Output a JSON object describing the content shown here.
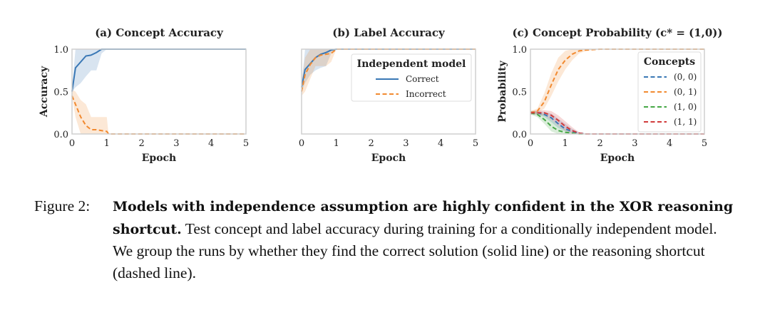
{
  "colors": {
    "blue": "#3a78b5",
    "orange": "#f28a30",
    "green": "#45a745",
    "red": "#d13c3c",
    "frame": "#cfcfcf"
  },
  "chart_data": [
    {
      "type": "line",
      "title": "(a) Concept Accuracy",
      "xlabel": "Epoch",
      "ylabel": "Accuracy",
      "xlim": [
        0,
        5
      ],
      "ylim": [
        0,
        1
      ],
      "xticks": [
        "0",
        "1",
        "2",
        "3",
        "4",
        "5"
      ],
      "yticks": [
        "0.0",
        "0.5",
        "1.0"
      ],
      "series": [
        {
          "name": "Correct",
          "color": "blue",
          "dash": false,
          "x": [
            0,
            0.1,
            0.25,
            0.4,
            0.55,
            0.7,
            0.85,
            1,
            2,
            5
          ],
          "y": [
            0.5,
            0.78,
            0.85,
            0.92,
            0.93,
            0.96,
            1,
            1,
            1,
            1
          ],
          "lower": [
            0.5,
            0.55,
            0.6,
            0.68,
            0.75,
            0.75,
            0.95,
            1,
            1,
            1
          ],
          "upper": [
            0.55,
            1,
            1,
            1,
            1,
            1,
            1,
            1,
            1,
            1
          ]
        },
        {
          "name": "Incorrect",
          "color": "orange",
          "dash": true,
          "x": [
            0,
            0.1,
            0.25,
            0.4,
            0.55,
            0.7,
            0.85,
            1,
            1.05,
            2,
            5
          ],
          "y": [
            0.45,
            0.35,
            0.2,
            0.1,
            0.05,
            0.05,
            0.04,
            0.03,
            0,
            0,
            0
          ],
          "lower": [
            0.45,
            0.2,
            0,
            0,
            0,
            0,
            0,
            0,
            0,
            0,
            0
          ],
          "upper": [
            0.52,
            0.5,
            0.4,
            0.35,
            0.2,
            0.2,
            0.2,
            0.2,
            0,
            0,
            0
          ]
        }
      ]
    },
    {
      "type": "line",
      "title": "(b) Label Accuracy",
      "xlabel": "Epoch",
      "ylabel": "",
      "xlim": [
        0,
        5
      ],
      "ylim": [
        0,
        1
      ],
      "xticks": [
        "0",
        "1",
        "2",
        "3",
        "4",
        "5"
      ],
      "yticks": [],
      "legend": {
        "title": "Independent model",
        "position": "upper-right",
        "entries": [
          "Correct",
          "Incorrect"
        ]
      },
      "series": [
        {
          "name": "Correct",
          "color": "blue",
          "dash": false,
          "x": [
            0,
            0.1,
            0.25,
            0.4,
            0.55,
            0.7,
            0.85,
            1,
            2,
            5
          ],
          "y": [
            0.55,
            0.76,
            0.83,
            0.9,
            0.94,
            0.96,
            0.99,
            1,
            1,
            1
          ],
          "lower": [
            0.5,
            0.6,
            0.7,
            0.75,
            0.78,
            0.8,
            0.95,
            1,
            1,
            1
          ],
          "upper": [
            0.6,
            1,
            1,
            1,
            1,
            1,
            1,
            1,
            1,
            1
          ]
        },
        {
          "name": "Incorrect",
          "color": "orange",
          "dash": true,
          "x": [
            0,
            0.1,
            0.25,
            0.4,
            0.55,
            0.7,
            0.85,
            1,
            2,
            5
          ],
          "y": [
            0.5,
            0.7,
            0.82,
            0.9,
            0.93,
            0.94,
            0.95,
            1,
            1,
            1
          ],
          "lower": [
            0.45,
            0.5,
            0.65,
            0.8,
            0.8,
            0.8,
            0.85,
            1,
            1,
            1
          ],
          "upper": [
            0.6,
            0.9,
            1,
            1,
            1,
            1,
            1,
            1,
            1,
            1
          ]
        }
      ]
    },
    {
      "type": "line",
      "title": "(c) Concept Probability (c* = (1,0))",
      "xlabel": "Epoch",
      "ylabel": "Probability",
      "xlim": [
        0,
        5
      ],
      "ylim": [
        0,
        1
      ],
      "xticks": [
        "0",
        "1",
        "2",
        "3",
        "4",
        "5"
      ],
      "yticks": [
        "0.0",
        "0.5",
        "1.0"
      ],
      "legend": {
        "title": "Concepts",
        "position": "right",
        "entries": [
          "(0, 0)",
          "(0, 1)",
          "(1, 0)",
          "(1, 1)"
        ]
      },
      "series": [
        {
          "name": "(0, 0)",
          "color": "blue",
          "dash": true,
          "x": [
            0,
            0.2,
            0.4,
            0.6,
            0.8,
            1,
            1.2,
            1.4,
            1.6,
            2,
            5
          ],
          "y": [
            0.25,
            0.25,
            0.23,
            0.19,
            0.12,
            0.06,
            0.03,
            0.01,
            0,
            0,
            0
          ],
          "lower": [
            0.23,
            0.23,
            0.2,
            0.14,
            0.07,
            0.03,
            0.01,
            0,
            0,
            0,
            0
          ],
          "upper": [
            0.27,
            0.27,
            0.26,
            0.24,
            0.18,
            0.12,
            0.06,
            0.02,
            0,
            0,
            0
          ]
        },
        {
          "name": "(0, 1)",
          "color": "orange",
          "dash": true,
          "x": [
            0,
            0.2,
            0.4,
            0.6,
            0.8,
            1,
            1.2,
            1.4,
            1.6,
            2,
            5
          ],
          "y": [
            0.25,
            0.27,
            0.38,
            0.58,
            0.76,
            0.87,
            0.94,
            0.98,
            0.99,
            1,
            1
          ],
          "lower": [
            0.24,
            0.25,
            0.3,
            0.45,
            0.62,
            0.76,
            0.87,
            0.95,
            0.98,
            1,
            1
          ],
          "upper": [
            0.27,
            0.3,
            0.48,
            0.72,
            0.9,
            0.98,
            1,
            1,
            1,
            1,
            1
          ]
        },
        {
          "name": "(1, 0)",
          "color": "green",
          "dash": true,
          "x": [
            0,
            0.2,
            0.4,
            0.6,
            0.8,
            1,
            1.2,
            1.4,
            1.6,
            2,
            5
          ],
          "y": [
            0.25,
            0.23,
            0.17,
            0.09,
            0.04,
            0.02,
            0.01,
            0,
            0,
            0,
            0
          ],
          "lower": [
            0.23,
            0.2,
            0.12,
            0.03,
            0,
            0,
            0,
            0,
            0,
            0,
            0
          ],
          "upper": [
            0.27,
            0.26,
            0.23,
            0.17,
            0.1,
            0.05,
            0.02,
            0,
            0,
            0,
            0
          ]
        },
        {
          "name": "(1, 1)",
          "color": "red",
          "dash": true,
          "x": [
            0,
            0.2,
            0.4,
            0.6,
            0.8,
            1,
            1.2,
            1.4,
            1.6,
            2,
            5
          ],
          "y": [
            0.25,
            0.25,
            0.25,
            0.22,
            0.16,
            0.09,
            0.04,
            0.01,
            0,
            0,
            0
          ],
          "lower": [
            0.23,
            0.23,
            0.22,
            0.17,
            0.1,
            0.04,
            0.01,
            0,
            0,
            0,
            0
          ],
          "upper": [
            0.27,
            0.28,
            0.28,
            0.27,
            0.22,
            0.15,
            0.08,
            0.02,
            0,
            0,
            0
          ]
        }
      ]
    }
  ],
  "caption": {
    "label": "Figure 2:",
    "bold": "Models with independence assumption are highly confident in the XOR reasoning shortcut.",
    "text": " Test concept and label accuracy during training for a conditionally independent model. We group the runs by whether they find the correct solution (solid line) or the reasoning shortcut (dashed line)."
  }
}
